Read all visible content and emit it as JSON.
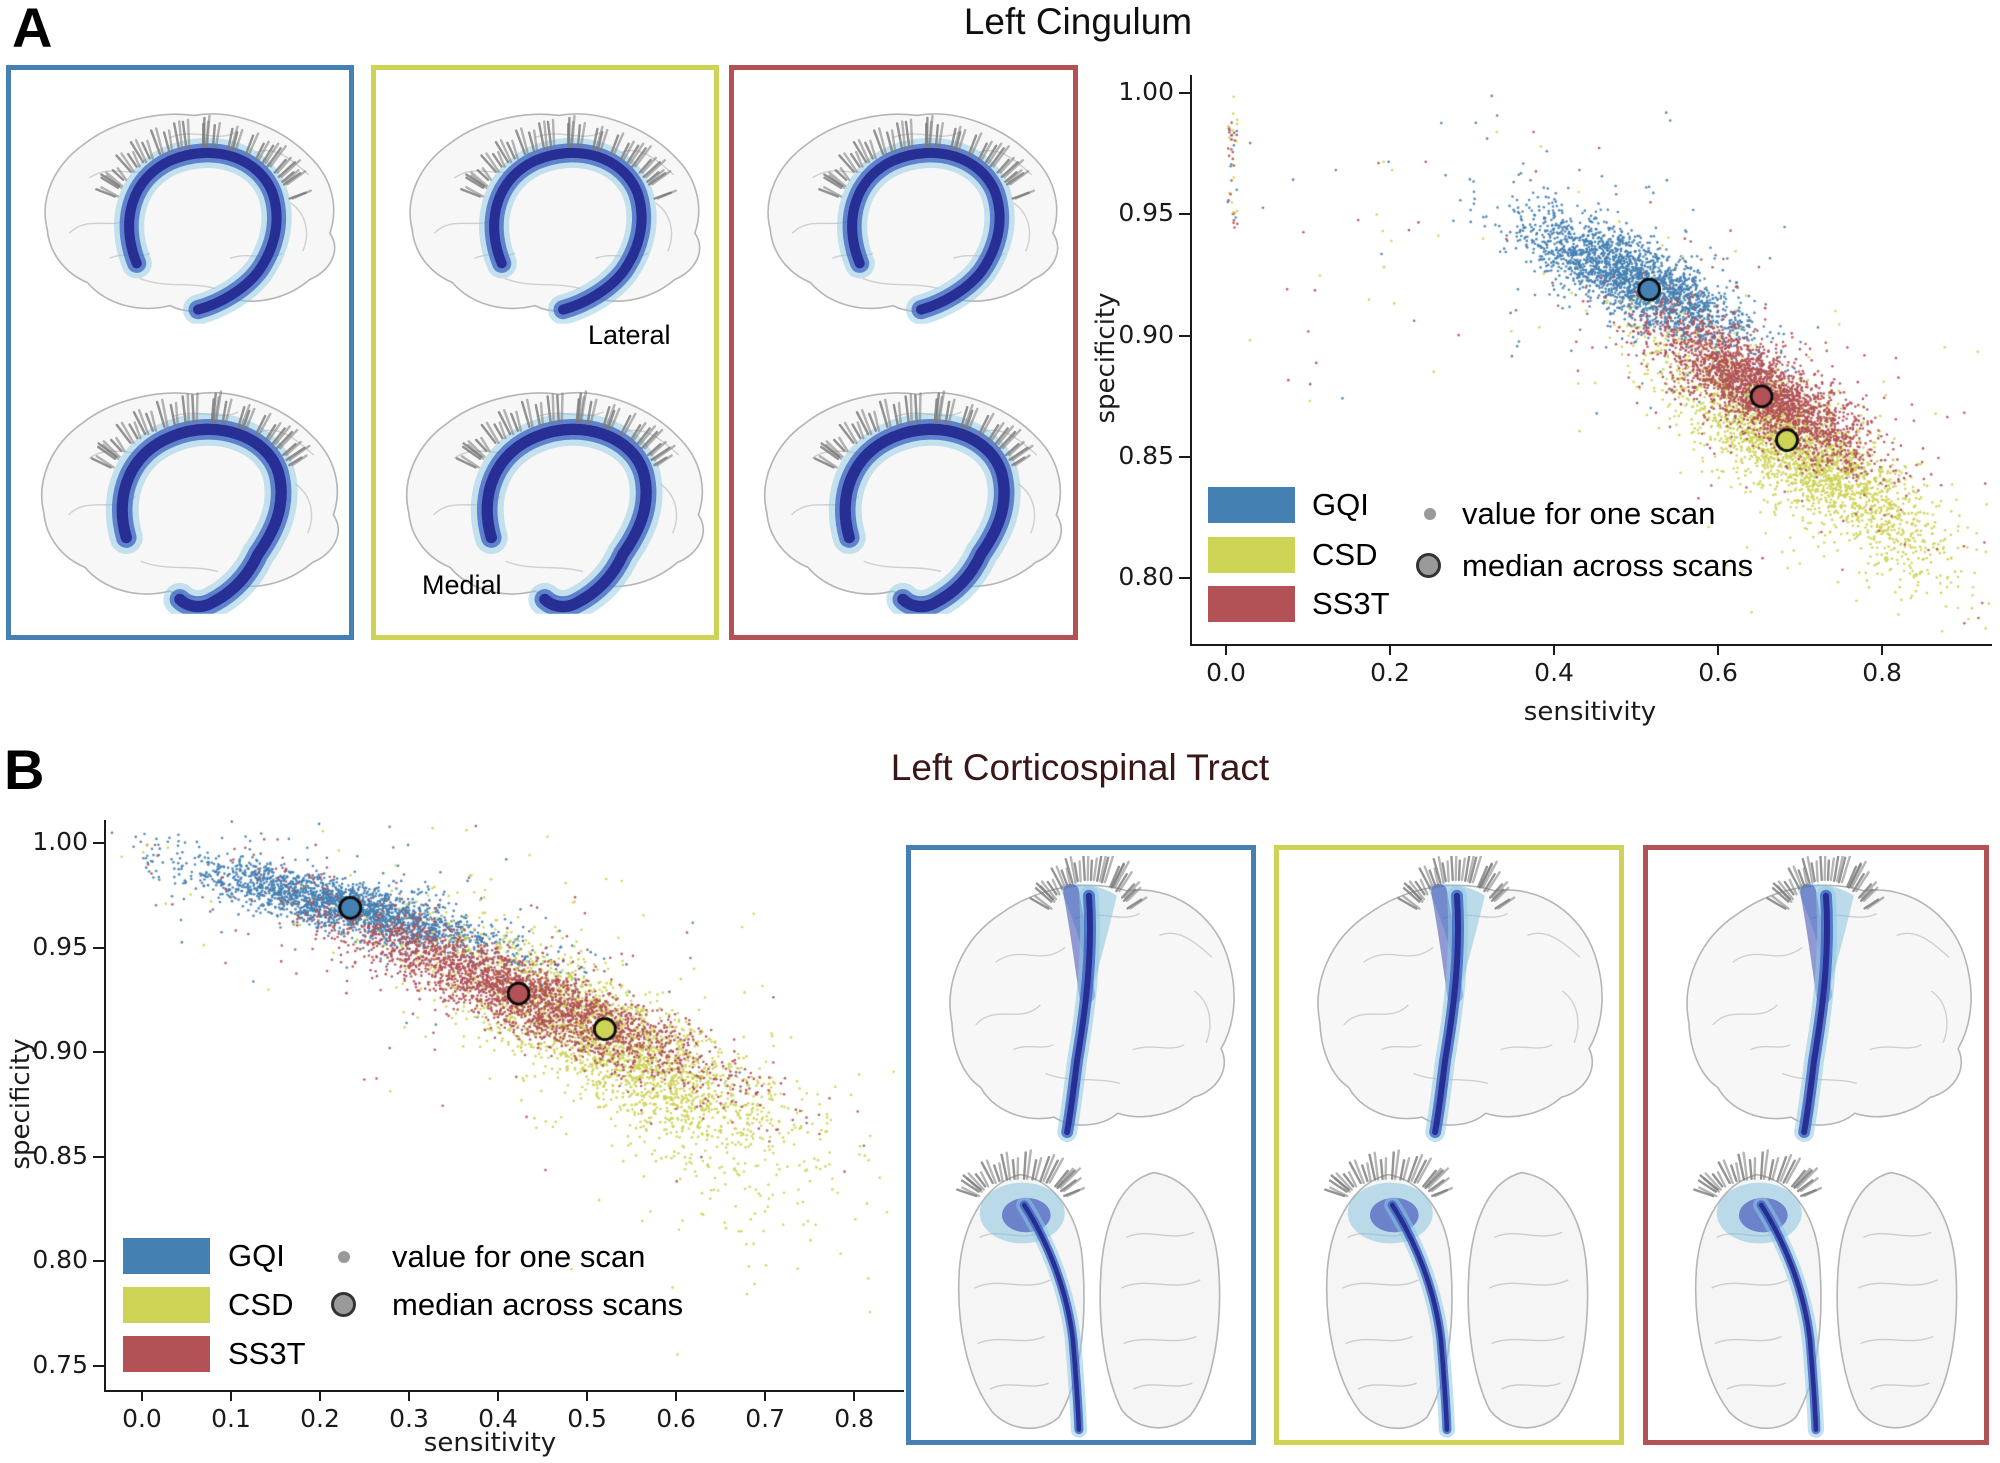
{
  "figure": {
    "panels": {
      "a": {
        "label": "A",
        "title": "Left Cingulum",
        "title_color": "#0f0f0f",
        "view_labels": {
          "top": "Lateral",
          "bottom": "Medial"
        },
        "methods": [
          {
            "name": "GQI",
            "color": "#4480b2"
          },
          {
            "name": "CSD",
            "color": "#cdd355"
          },
          {
            "name": "SS3T",
            "color": "#b25156"
          }
        ]
      },
      "b": {
        "label": "B",
        "title": "Left Corticospinal Tract",
        "title_color": "#3a1616",
        "methods": [
          {
            "name": "GQI",
            "color": "#4480b2"
          },
          {
            "name": "CSD",
            "color": "#cdd355"
          },
          {
            "name": "SS3T",
            "color": "#b25156"
          }
        ]
      }
    },
    "legend": {
      "small_marker_label": "value for one scan",
      "big_marker_label": "median across scans",
      "marker_color": "#9a9a9a"
    }
  },
  "chart_data": [
    {
      "panel": "A",
      "type": "scatter",
      "title": "Left Cingulum",
      "xlabel": "sensitivity",
      "ylabel": "specificity",
      "xlim": [
        -0.0415,
        0.934
      ],
      "ylim": [
        0.773,
        1.0074
      ],
      "grid": false,
      "legend_position": "lower-left",
      "xticks": {
        "values": [
          0.0,
          0.2,
          0.4,
          0.6,
          0.8
        ],
        "labels": [
          "0.0",
          "0.2",
          "0.4",
          "0.6",
          "0.8"
        ]
      },
      "yticks": {
        "values": [
          1.0,
          0.95,
          0.9,
          0.85,
          0.8
        ],
        "labels": [
          "1.00",
          "0.95",
          "0.90",
          "0.85",
          "0.80"
        ]
      },
      "series": [
        {
          "name": "GQI",
          "color": "#4480b2",
          "n": 2300,
          "center": [
            0.5,
            0.923
          ],
          "slope": -0.15,
          "sigma_along": 0.068,
          "sigma_perp": 0.0085,
          "median": [
            0.516,
            0.919
          ]
        },
        {
          "name": "CSD",
          "color": "#cdd355",
          "n": 2400,
          "center": [
            0.695,
            0.853
          ],
          "slope": -0.21,
          "sigma_along": 0.082,
          "sigma_perp": 0.012,
          "tail": {
            "n": 90,
            "center": [
              0.795,
              0.818
            ],
            "slope": -0.3,
            "sigma_along": 0.05,
            "sigma_perp": 0.012
          },
          "median": [
            0.684,
            0.857
          ]
        },
        {
          "name": "SS3T",
          "color": "#b25156",
          "n": 2500,
          "center": [
            0.655,
            0.877
          ],
          "slope": -0.18,
          "sigma_along": 0.064,
          "sigma_perp": 0.009,
          "median": [
            0.653,
            0.875
          ]
        }
      ],
      "zero_column": {
        "x": [
          0.002,
          0.014
        ],
        "y": [
          0.944,
          1.0
        ],
        "n": 48
      },
      "outliers_n": 38,
      "outbox": {
        "x": [
          0.02,
          0.38
        ],
        "y": [
          0.872,
          0.992
        ]
      }
    },
    {
      "panel": "B",
      "type": "scatter",
      "title": "Left Corticospinal Tract",
      "xlabel": "sensitivity",
      "ylabel": "specificity",
      "xlim": [
        -0.0404,
        0.856
      ],
      "ylim": [
        0.7385,
        1.011
      ],
      "grid": false,
      "legend_position": "lower-left",
      "xticks": {
        "values": [
          0.0,
          0.1,
          0.2,
          0.3,
          0.4,
          0.5,
          0.6,
          0.7,
          0.8
        ],
        "labels": [
          "0.0",
          "0.1",
          "0.2",
          "0.3",
          "0.4",
          "0.5",
          "0.6",
          "0.7",
          "0.8"
        ]
      },
      "yticks": {
        "values": [
          1.0,
          0.95,
          0.9,
          0.85,
          0.8,
          0.75
        ],
        "labels": [
          "1.00",
          "0.95",
          "0.90",
          "0.85",
          "0.80",
          "0.75"
        ]
      },
      "series": [
        {
          "name": "GQI",
          "color": "#4480b2",
          "n": 2300,
          "center": [
            0.235,
            0.969
          ],
          "slope": -0.105,
          "sigma_along": 0.085,
          "sigma_perp": 0.006,
          "median": [
            0.234,
            0.969
          ]
        },
        {
          "name": "CSD",
          "color": "#cdd355",
          "n": 2400,
          "center": [
            0.525,
            0.905
          ],
          "slope": -0.22,
          "sigma_along": 0.1,
          "sigma_perp": 0.016,
          "tail": {
            "n": 110,
            "center": [
              0.615,
              0.862
            ],
            "slope": -0.3,
            "sigma_along": 0.075,
            "sigma_perp": 0.022
          },
          "median": [
            0.52,
            0.911
          ]
        },
        {
          "name": "SS3T",
          "color": "#b25156",
          "n": 2600,
          "center": [
            0.425,
            0.928
          ],
          "slope": -0.17,
          "sigma_along": 0.105,
          "sigma_perp": 0.009,
          "median": [
            0.423,
            0.928
          ]
        }
      ],
      "zero_column": {
        "x": [
          0.0,
          0.03
        ],
        "y": [
          0.985,
          1.0
        ],
        "n": 10
      },
      "outliers_n": 26,
      "outbox": {
        "x": [
          0.01,
          0.22
        ],
        "y": [
          0.935,
          0.998
        ]
      }
    }
  ]
}
